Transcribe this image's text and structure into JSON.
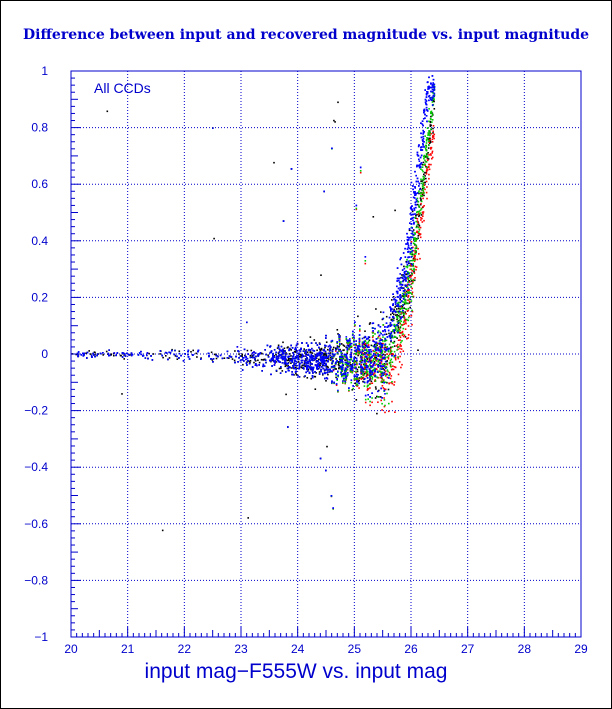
{
  "chart_data": {
    "type": "scatter",
    "title": "Difference between input and recovered magnitude vs. input magnitude",
    "xlabel": "input mag−F555W vs. input mag",
    "ylabel": "",
    "annotation": "All CCDs",
    "xlim": [
      20,
      29
    ],
    "ylim": [
      -1,
      1
    ],
    "x_ticks": [
      20,
      21,
      22,
      23,
      24,
      25,
      26,
      27,
      28,
      29
    ],
    "y_ticks": [
      -1,
      -0.8,
      -0.6,
      -0.4,
      -0.2,
      0,
      0.2,
      0.4,
      0.6,
      0.8,
      1
    ],
    "y_tick_labels": [
      "−1",
      "−0.8",
      "−0.6",
      "−0.4",
      "−0.2",
      "0",
      "0.2",
      "0.4",
      "0.6",
      "0.8",
      "1"
    ],
    "grid": true,
    "colors": {
      "axes": "#0000cc",
      "grid": "#0000cc",
      "background": "#ffffff",
      "outer": "#000000"
    },
    "series": [
      {
        "color": "#000000",
        "trend": [
          [
            20.0,
            0.0
          ],
          [
            22.0,
            0.0
          ],
          [
            23.5,
            -0.01
          ],
          [
            24.5,
            -0.02
          ],
          [
            25.0,
            -0.03
          ],
          [
            25.5,
            -0.02
          ],
          [
            26.0,
            0.3
          ],
          [
            26.4,
            0.9
          ]
        ],
        "spread": [
          [
            20.0,
            0.02
          ],
          [
            21.0,
            0.03
          ],
          [
            22.0,
            0.04
          ],
          [
            23.0,
            0.07
          ],
          [
            24.0,
            0.12
          ],
          [
            24.5,
            0.16
          ],
          [
            25.0,
            0.22
          ],
          [
            25.5,
            0.28
          ],
          [
            26.0,
            0.25
          ],
          [
            26.5,
            0.1
          ]
        ]
      },
      {
        "color": "#ff0000",
        "trend": [
          [
            20.0,
            0.0
          ],
          [
            22.0,
            0.0
          ],
          [
            23.5,
            -0.01
          ],
          [
            24.5,
            -0.02
          ],
          [
            25.3,
            -0.04
          ],
          [
            25.7,
            -0.05
          ],
          [
            26.0,
            0.25
          ],
          [
            26.5,
            0.95
          ]
        ],
        "spread": [
          [
            20.0,
            0.02
          ],
          [
            21.0,
            0.03
          ],
          [
            22.0,
            0.04
          ],
          [
            23.0,
            0.07
          ],
          [
            24.0,
            0.12
          ],
          [
            24.5,
            0.16
          ],
          [
            25.0,
            0.22
          ],
          [
            25.5,
            0.28
          ],
          [
            26.0,
            0.25
          ],
          [
            26.5,
            0.1
          ]
        ]
      },
      {
        "color": "#00cc00",
        "trend": [
          [
            20.0,
            0.0
          ],
          [
            22.0,
            0.0
          ],
          [
            23.5,
            -0.01
          ],
          [
            24.5,
            -0.02
          ],
          [
            25.0,
            -0.03
          ],
          [
            25.6,
            -0.02
          ],
          [
            26.0,
            0.3
          ],
          [
            26.4,
            0.95
          ]
        ],
        "spread": [
          [
            20.0,
            0.02
          ],
          [
            21.0,
            0.03
          ],
          [
            22.0,
            0.04
          ],
          [
            23.0,
            0.07
          ],
          [
            24.0,
            0.12
          ],
          [
            24.5,
            0.16
          ],
          [
            25.0,
            0.22
          ],
          [
            25.5,
            0.28
          ],
          [
            26.0,
            0.25
          ],
          [
            26.5,
            0.1
          ]
        ]
      },
      {
        "color": "#0000ff",
        "trend": [
          [
            20.0,
            0.0
          ],
          [
            22.0,
            0.0
          ],
          [
            23.5,
            -0.01
          ],
          [
            24.5,
            -0.02
          ],
          [
            25.0,
            -0.02
          ],
          [
            25.5,
            0.0
          ],
          [
            25.9,
            0.3
          ],
          [
            26.3,
            0.95
          ]
        ],
        "spread": [
          [
            20.0,
            0.02
          ],
          [
            21.0,
            0.03
          ],
          [
            22.0,
            0.04
          ],
          [
            23.0,
            0.07
          ],
          [
            24.0,
            0.12
          ],
          [
            24.5,
            0.16
          ],
          [
            25.0,
            0.22
          ],
          [
            25.5,
            0.28
          ],
          [
            26.0,
            0.25
          ],
          [
            26.5,
            0.1
          ]
        ]
      }
    ]
  }
}
